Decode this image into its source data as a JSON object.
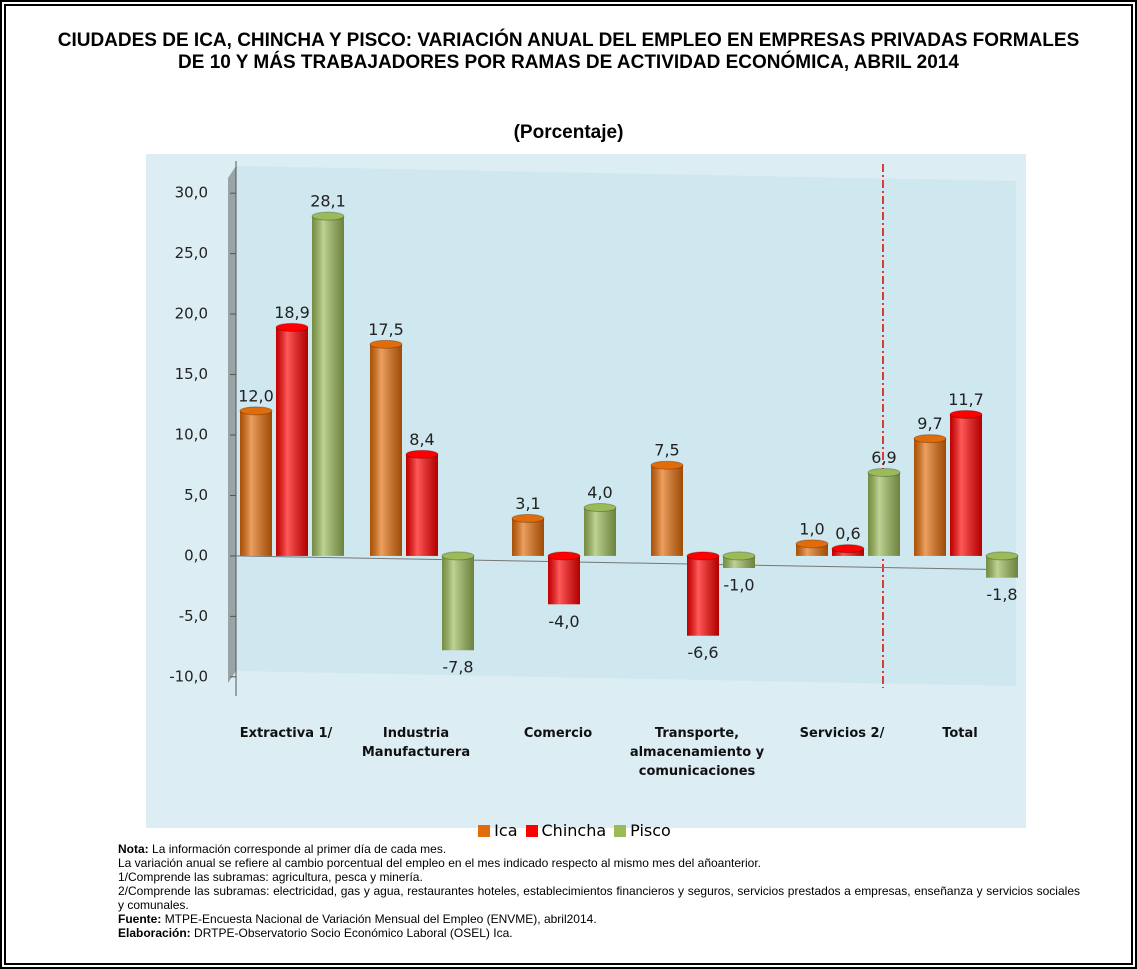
{
  "chart_data": {
    "type": "bar",
    "title": "CIUDADES DE ICA, CHINCHA Y PISCO: VARIACIÓN ANUAL DEL EMPLEO EN EMPRESAS PRIVADAS FORMALES DE 10 Y MÁS TRABAJADORES POR RAMAS DE ACTIVIDAD ECONÓMICA, ABRIL 2014",
    "subtitle": "(Porcentaje)",
    "categories": [
      "Extractiva 1/",
      "Industria Manufacturera",
      "Comercio",
      "Transporte, almacenamiento y comunicaciones",
      "Servicios 2/",
      "Total"
    ],
    "series": [
      {
        "name": "Ica",
        "color": "#e36c0a",
        "values": [
          12.0,
          17.5,
          3.1,
          7.5,
          1.0,
          9.7
        ],
        "value_labels": [
          "12,0",
          "17,5",
          "3,1",
          "7,5",
          "1,0",
          "9,7"
        ]
      },
      {
        "name": "Chincha",
        "color": "#ff0000",
        "values": [
          18.9,
          8.4,
          -4.0,
          -6.6,
          0.6,
          11.7
        ],
        "value_labels": [
          "18,9",
          "8,4",
          "-4,0",
          "-6,6",
          "0,6",
          "11,7"
        ]
      },
      {
        "name": "Pisco",
        "color": "#9bbb59",
        "values": [
          28.1,
          -7.8,
          4.0,
          -1.0,
          6.9,
          -1.8
        ],
        "value_labels": [
          "28,1",
          "-7,8",
          "4,0",
          "-1,0",
          "6,9",
          "-1,8"
        ]
      }
    ],
    "ylim": [
      -12,
      32
    ],
    "yticks": [
      {
        "value": -10,
        "label": "-10,0"
      },
      {
        "value": -5,
        "label": "-5,0"
      },
      {
        "value": 0,
        "label": "0,0"
      },
      {
        "value": 5,
        "label": "5,0"
      },
      {
        "value": 10,
        "label": "10,0"
      },
      {
        "value": 15,
        "label": "15,0"
      },
      {
        "value": 20,
        "label": "20,0"
      },
      {
        "value": 25,
        "label": "25,0"
      },
      {
        "value": 30,
        "label": "30,0"
      }
    ],
    "grid": false,
    "legend": "bottom"
  },
  "notes": [
    {
      "label": "Nota:",
      "text": "La información corresponde al primer día de cada mes."
    },
    {
      "text": "La variación anual se refiere al cambio porcentual del empleo en el mes indicado respecto al mismo mes del añoanterior."
    },
    {
      "text": "1/Comprende las subramas: agricultura, pesca y minería."
    },
    {
      "text": "2/Comprende las subramas: electricidad, gas y agua, restaurantes hoteles, establecimientos financieros y seguros, servicios prestados a  empresas, enseñanza y servicios sociales y comunales."
    },
    {
      "label": "Fuente:",
      "text": "MTPE-Encuesta Nacional de Variación Mensual del Empleo (ENVME), abril2014."
    },
    {
      "label": "Elaboración:",
      "text": "DRTPE-Observatorio Socio Económico Laboral (OSEL) Ica."
    }
  ]
}
